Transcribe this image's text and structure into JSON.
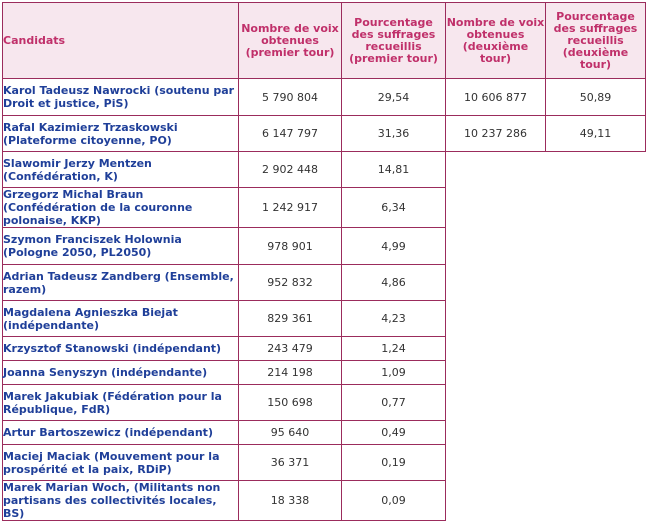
{
  "table": {
    "headers": [
      "Candidats",
      "Nombre de voix obtenues (premier tour)",
      "Pourcentage des suffrages recueillis (premier tour)",
      "Nombre de voix obtenues (deuxième tour)",
      "Pourcentage des suffrages recueillis (deuxième tour)"
    ],
    "rows": [
      {
        "candidate": "Karol Tadeusz Nawrocki (soutenu par Droit et justice, PiS)",
        "votes_r1": "5 790 804",
        "pct_r1": "29,54",
        "votes_r2": "10 606 877",
        "pct_r2": "50,89"
      },
      {
        "candidate": "Rafal Kazimierz Trzaskowski (Plateforme citoyenne, PO)",
        "votes_r1": "6 147 797",
        "pct_r1": "31,36",
        "votes_r2": "10 237 286",
        "pct_r2": "49,11"
      },
      {
        "candidate": "Slawomir Jerzy Mentzen (Confédération, K)",
        "votes_r1": "2 902 448",
        "pct_r1": "14,81"
      },
      {
        "candidate": "Grzegorz Michal Braun (Confédération de la couronne polonaise, KKP)",
        "votes_r1": "1 242 917",
        "pct_r1": "6,34"
      },
      {
        "candidate": "Szymon Franciszek Holownia (Pologne 2050, PL2050)",
        "votes_r1": "978 901",
        "pct_r1": "4,99"
      },
      {
        "candidate": "Adrian Tadeusz Zandberg (Ensemble, razem)",
        "votes_r1": "952 832",
        "pct_r1": "4,86"
      },
      {
        "candidate": "Magdalena Agnieszka Biejat (indépendante)",
        "votes_r1": "829 361",
        "pct_r1": "4,23"
      },
      {
        "candidate": "Krzysztof Stanowski (indépendant)",
        "votes_r1": "243 479",
        "pct_r1": "1,24"
      },
      {
        "candidate": "Joanna Senyszyn (indépendante)",
        "votes_r1": "214 198",
        "pct_r1": "1,09"
      },
      {
        "candidate": "Marek Jakubiak (Fédération pour la République, FdR)",
        "votes_r1": "150 698",
        "pct_r1": "0,77"
      },
      {
        "candidate": "Artur Bartoszewicz (indépendant)",
        "votes_r1": "95 640",
        "pct_r1": "0,49"
      },
      {
        "candidate": "Maciej Maciak (Mouvement pour la prospérité et la paix, RDiP)",
        "votes_r1": "36 371",
        "pct_r1": "0,19"
      },
      {
        "candidate": "Marek Marian Woch, (Militants non partisans des collectivités locales, BS)",
        "votes_r1": "18 338",
        "pct_r1": "0,09"
      }
    ]
  },
  "colors": {
    "border": "#9b2c5c",
    "header_bg": "#f7e7ee",
    "header_text": "#c0306a",
    "candidate_text": "#1f3f99",
    "number_text": "#333333"
  }
}
